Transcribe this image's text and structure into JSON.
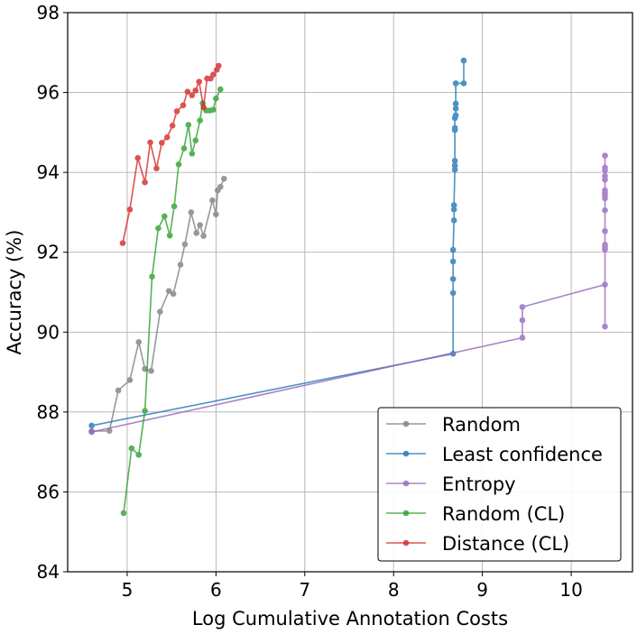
{
  "chart_data": {
    "type": "line",
    "title": "",
    "xlabel": "Log Cumulative Annotation Costs",
    "ylabel": "Accuracy (%)",
    "xlim": [
      4.33,
      10.69
    ],
    "ylim": [
      84,
      98
    ],
    "xticks": [
      5,
      6,
      7,
      8,
      9,
      10
    ],
    "yticks": [
      84,
      86,
      88,
      90,
      92,
      94,
      96,
      98
    ],
    "grid": true,
    "legend_position": "lower-right",
    "series": [
      {
        "name": "Random",
        "color": "#7f7f7f",
        "points": [
          [
            4.6,
            87.52
          ],
          [
            4.8,
            87.53
          ],
          [
            4.9,
            88.54
          ],
          [
            5.03,
            88.8
          ],
          [
            5.13,
            89.75
          ],
          [
            5.2,
            89.08
          ],
          [
            5.27,
            89.03
          ],
          [
            5.37,
            90.51
          ],
          [
            5.47,
            91.03
          ],
          [
            5.52,
            90.96
          ],
          [
            5.6,
            91.69
          ],
          [
            5.65,
            92.2
          ],
          [
            5.72,
            93.0
          ],
          [
            5.78,
            92.48
          ],
          [
            5.82,
            92.68
          ],
          [
            5.86,
            92.41
          ],
          [
            5.96,
            93.3
          ],
          [
            6.0,
            92.95
          ],
          [
            6.02,
            93.55
          ],
          [
            6.05,
            93.64
          ],
          [
            6.09,
            93.84
          ]
        ]
      },
      {
        "name": "Least confidence",
        "color": "#1f77b4",
        "points": [
          [
            4.6,
            87.66
          ],
          [
            8.67,
            89.46
          ],
          [
            8.67,
            90.98
          ],
          [
            8.67,
            91.33
          ],
          [
            8.67,
            91.77
          ],
          [
            8.67,
            92.06
          ],
          [
            8.68,
            92.8
          ],
          [
            8.68,
            93.07
          ],
          [
            8.68,
            93.18
          ],
          [
            8.69,
            94.07
          ],
          [
            8.69,
            94.17
          ],
          [
            8.69,
            94.29
          ],
          [
            8.69,
            95.06
          ],
          [
            8.69,
            95.11
          ],
          [
            8.69,
            95.36
          ],
          [
            8.7,
            95.43
          ],
          [
            8.7,
            95.6
          ],
          [
            8.7,
            95.72
          ],
          [
            8.7,
            96.23
          ],
          [
            8.79,
            96.23
          ],
          [
            8.79,
            96.8
          ]
        ]
      },
      {
        "name": "Entropy",
        "color": "#9467bd",
        "points": [
          [
            4.6,
            87.5
          ],
          [
            9.45,
            89.86
          ],
          [
            9.45,
            90.3
          ],
          [
            9.45,
            90.63
          ],
          [
            10.38,
            91.19
          ],
          [
            10.38,
            90.14
          ],
          [
            10.38,
            92.07
          ],
          [
            10.38,
            92.13
          ],
          [
            10.38,
            92.19
          ],
          [
            10.38,
            92.53
          ],
          [
            10.38,
            93.05
          ],
          [
            10.38,
            93.35
          ],
          [
            10.38,
            93.42
          ],
          [
            10.38,
            93.48
          ],
          [
            10.38,
            93.55
          ],
          [
            10.38,
            93.82
          ],
          [
            10.38,
            93.91
          ],
          [
            10.38,
            94.05
          ],
          [
            10.38,
            94.12
          ],
          [
            10.38,
            94.42
          ]
        ]
      },
      {
        "name": "Random (CL)",
        "color": "#2ca02c",
        "points": [
          [
            4.96,
            85.47
          ],
          [
            5.05,
            87.09
          ],
          [
            5.13,
            86.93
          ],
          [
            5.2,
            88.03
          ],
          [
            5.28,
            91.39
          ],
          [
            5.35,
            92.6
          ],
          [
            5.42,
            92.9
          ],
          [
            5.48,
            92.42
          ],
          [
            5.53,
            93.15
          ],
          [
            5.58,
            94.2
          ],
          [
            5.64,
            94.6
          ],
          [
            5.69,
            95.19
          ],
          [
            5.73,
            94.47
          ],
          [
            5.77,
            94.8
          ],
          [
            5.82,
            95.3
          ],
          [
            5.85,
            95.73
          ],
          [
            5.89,
            95.55
          ],
          [
            5.93,
            95.55
          ],
          [
            5.97,
            95.57
          ],
          [
            6.0,
            95.85
          ],
          [
            6.05,
            96.08
          ]
        ]
      },
      {
        "name": "Distance (CL)",
        "color": "#d62728",
        "points": [
          [
            4.95,
            92.23
          ],
          [
            5.03,
            93.07
          ],
          [
            5.12,
            94.36
          ],
          [
            5.2,
            93.75
          ],
          [
            5.26,
            94.75
          ],
          [
            5.33,
            94.1
          ],
          [
            5.39,
            94.74
          ],
          [
            5.45,
            94.88
          ],
          [
            5.51,
            95.17
          ],
          [
            5.56,
            95.53
          ],
          [
            5.63,
            95.68
          ],
          [
            5.68,
            96.02
          ],
          [
            5.73,
            95.93
          ],
          [
            5.77,
            96.05
          ],
          [
            5.81,
            96.27
          ],
          [
            5.86,
            95.63
          ],
          [
            5.9,
            96.35
          ],
          [
            5.94,
            96.35
          ],
          [
            5.97,
            96.45
          ],
          [
            6.01,
            96.57
          ],
          [
            6.03,
            96.67
          ]
        ]
      }
    ]
  }
}
